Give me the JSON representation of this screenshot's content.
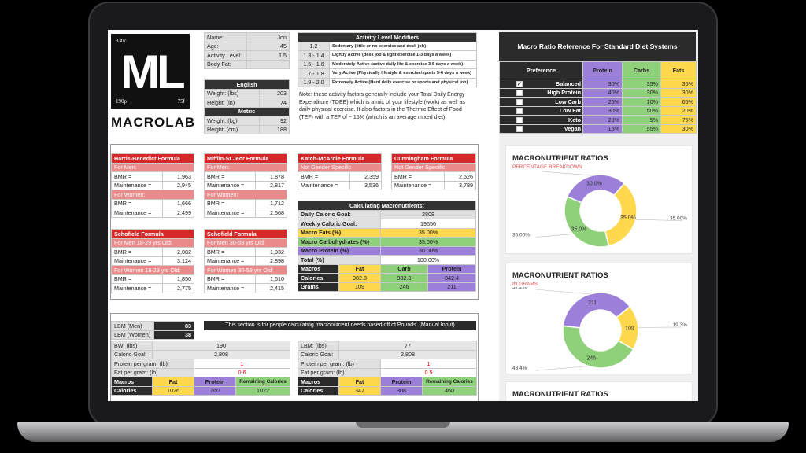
{
  "logo": {
    "title": "ML",
    "brand": "MACROLAB",
    "tl": "330c",
    "bl": "190p",
    "br": "75f"
  },
  "profile": [
    [
      "Name:",
      "Jon"
    ],
    [
      "Age:",
      "45"
    ],
    [
      "Activity Level:",
      "1.5"
    ],
    [
      "Body Fat:",
      ""
    ]
  ],
  "english": {
    "title": "English",
    "rows": [
      [
        "Weight: (lbs)",
        "203"
      ],
      [
        "Height: (in)",
        "74"
      ]
    ]
  },
  "metric": {
    "title": "Metric",
    "rows": [
      [
        "Weight: (kg)",
        "92"
      ],
      [
        "Height: (cm)",
        "188"
      ]
    ]
  },
  "activity": {
    "title": "Activity Level Modifiers",
    "rows": [
      [
        "1.2",
        "Sedentary (little or no exercise and desk job)"
      ],
      [
        "1.3 - 1.4",
        "Lightly Active (desk job & light exercise 1-3 days a week)"
      ],
      [
        "1.5 - 1.6",
        "Moderately Active (active daily life & exercise 3-5 days a week)"
      ],
      [
        "1.7 - 1.8",
        "Very Active (Physically lifestyle & exercise/sports 5-6 days a week)"
      ],
      [
        "1.9 - 2.0",
        "Extremely Active (Hard daily exercise or sports and physical job)"
      ]
    ],
    "note": "Note: these activity factors generally include your Total Daily Energy Expenditure (TDEE) which is a mix of your lifestyle (work) as well as daily physical exercise. It also factors in the Thermic Effect of Food (TEF) with a TEF of ~ 15% (which is an average mixed diet)."
  },
  "formulas": {
    "hb": {
      "title": "Harris-Benedict Formula",
      "men": "For Men:",
      "women": "For Women:",
      "bmr_m": "1,963",
      "mt_m": "2,945",
      "bmr_w": "1,666",
      "mt_w": "2,499"
    },
    "msj": {
      "title": "Mifflin-St Jeor Formula",
      "men": "For Men:",
      "women": "For Women:",
      "bmr_m": "1,878",
      "mt_m": "2,817",
      "bmr_w": "1,712",
      "mt_w": "2,568"
    },
    "km": {
      "title": "Katch-McArdle Formula",
      "sub": "Not Gender Specific",
      "bmr": "2,359",
      "mt": "3,536"
    },
    "cu": {
      "title": "Cunningham Formula",
      "sub": "Not Gender Specific",
      "bmr": "2,526",
      "mt": "3,789"
    },
    "s1": {
      "title": "Schofield Formula",
      "a": "For Men 18-29 yrs Old:",
      "b": "For Women 18-29 yrs Old:",
      "bmr_a": "2,082",
      "mt_a": "3,124",
      "bmr_b": "1,850",
      "mt_b": "2,775"
    },
    "s2": {
      "title": "Schofield Formula",
      "a": "For Men 30-59 yrs Old:",
      "b": "For Women 30-59 yrs Old:",
      "bmr_a": "1,932",
      "mt_a": "2,898",
      "bmr_b": "1,610",
      "mt_b": "2,415"
    },
    "bmr_label": "BMR =",
    "mt_label": "Maintenance ="
  },
  "calc": {
    "title": "Calculating Macronutrients:",
    "rows": [
      [
        "Daily Caloric Goal:",
        "2808"
      ],
      [
        "Weekly Caloric Goal:",
        "19656"
      ],
      [
        "Macro Fats (%)",
        "35.00%"
      ],
      [
        "Macro Carbohydrates (%)",
        "35.00%"
      ],
      [
        "Macro Protein (%)",
        "30.00%"
      ],
      [
        "Total (%)",
        "100.00%"
      ]
    ],
    "headers": [
      "Macros",
      "Fat",
      "Carb",
      "Protein"
    ],
    "calories": [
      "Calories",
      "982.8",
      "982.8",
      "842.4"
    ],
    "grams": [
      "Grams",
      "109",
      "246",
      "211"
    ]
  },
  "lbm": [
    [
      "LBM (Men)",
      "83"
    ],
    [
      "LBM (Women)",
      "38"
    ]
  ],
  "manual_note": "This section is for people calculating macronutrient needs based off of Pounds. (Manual Input)",
  "pounds_left": {
    "bw": [
      "BW: (lbs)",
      "190"
    ],
    "goal": [
      "Caloric Goal:",
      "2,808"
    ],
    "ppg": [
      "Protein per gram: (lb)",
      "1"
    ],
    "fpg": [
      "Fat per gram: (lb)",
      "0.6"
    ],
    "hdr": [
      "Macros",
      "Fat",
      "Protein",
      "Remaining Calories"
    ],
    "cal": [
      "Calories",
      "1026",
      "760",
      "1022"
    ]
  },
  "pounds_right": {
    "bw": [
      "LBM: (lbs)",
      "77"
    ],
    "goal": [
      "Caloric Goal:",
      "2,808"
    ],
    "ppg": [
      "Protein per gram: (lb)",
      "1"
    ],
    "fpg": [
      "Fat per gram: (lb)",
      "0.5"
    ],
    "hdr": [
      "Macros",
      "Fat",
      "Protein",
      "Remaining Calories"
    ],
    "cal": [
      "Calories",
      "347",
      "308",
      "460"
    ]
  },
  "reference": {
    "title": "Macro Ratio Reference For Standard Diet Systems",
    "headers": [
      "Preference",
      "Protein",
      "Carbs",
      "Fats"
    ],
    "rows": [
      [
        "Balanced",
        "30%",
        "35%",
        "35%",
        true
      ],
      [
        "High Protein",
        "40%",
        "30%",
        "30%",
        false
      ],
      [
        "Low Carb",
        "25%",
        "10%",
        "65%",
        false
      ],
      [
        "Low Fat",
        "30%",
        "50%",
        "20%",
        false
      ],
      [
        "Keto",
        "20%",
        "5%",
        "75%",
        false
      ],
      [
        "Vegan",
        "15%",
        "55%",
        "30%",
        false
      ]
    ]
  },
  "chart1": {
    "title": "MACRONUTRIENT RATIOS",
    "subtitle": "PERCENTAGE BREAKDOWN",
    "outer": [
      "30.00%",
      "35.00%",
      "35.00%"
    ],
    "outer2": [
      "30.0%",
      "35.0%",
      "35.0%"
    ]
  },
  "chart2": {
    "title": "MACRONUTRIENT RATIOS",
    "subtitle": "IN GRAMS",
    "outer": [
      "37.2%",
      "19.3%",
      "43.4%"
    ]
  },
  "chart3": {
    "title": "MACRONUTRIENT RATIOS"
  },
  "chart_data": [
    {
      "type": "pie",
      "title": "MACRONUTRIENT RATIOS",
      "subtitle": "PERCENTAGE BREAKDOWN",
      "categories": [
        "Protein",
        "Fat",
        "Carb"
      ],
      "values": [
        30.0,
        35.0,
        35.0
      ],
      "colors": [
        "#9b7fd9",
        "#ffd84d",
        "#8fd07a"
      ]
    },
    {
      "type": "pie",
      "title": "MACRONUTRIENT RATIOS",
      "subtitle": "IN GRAMS",
      "categories": [
        "Protein",
        "Fat",
        "Carb"
      ],
      "values": [
        211,
        109,
        246
      ],
      "colors": [
        "#9b7fd9",
        "#ffd84d",
        "#8fd07a"
      ]
    }
  ]
}
